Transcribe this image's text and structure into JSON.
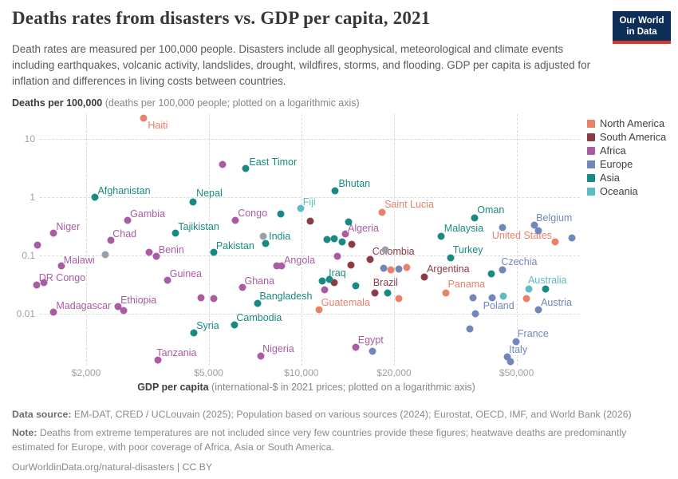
{
  "header": {
    "title": "Deaths rates from disasters vs. GDP per capita, 2021",
    "subtitle": "Death rates are measured per 100,000 people. Disasters include all geophysical, meteorological and climate events including earthquakes, volcanic activity, landslides, drought, wildfires, storms, and flooding. GDP per capita is adjusted for inflation and differences in living costs between countries.",
    "logo_line1": "Our World",
    "logo_line2": "in Data",
    "logo_bg": "#0d2e56",
    "logo_stripe": "#d8352e"
  },
  "axis": {
    "y_bold": "Deaths per 100,000",
    "y_rest": " (deaths per 100,000 people; plotted on a logarithmic axis)",
    "x_bold": "GDP per capita",
    "x_rest": " (international-$ in 2021 prices; plotted on a logarithmic axis)"
  },
  "legend": [
    {
      "label": "North America",
      "color": "#e8806a"
    },
    {
      "label": "South America",
      "color": "#8c3a45"
    },
    {
      "label": "Africa",
      "color": "#a95ca3"
    },
    {
      "label": "Europe",
      "color": "#7286bb"
    },
    {
      "label": "Asia",
      "color": "#188a81"
    },
    {
      "label": "Oceania",
      "color": "#5cbcc4"
    }
  ],
  "footer": {
    "source_bold": "Data source:",
    "source_rest": " EM-DAT, CRED / UCLouvain (2025); Population based on various sources (2024); Eurostat, OECD, IMF, and World Bank (2026)",
    "note_bold": "Note:",
    "note_rest": " Deaths from extreme temperatures are not included since very few countries provide these figures; heatwave deaths are predominantly estimated for Europe, with poor coverage of Africa, Asia or South America.",
    "license": "OurWorldinData.org/natural-disasters | CC BY"
  },
  "chart_data": {
    "type": "scatter",
    "title": "Deaths rates from disasters vs. GDP per capita, 2021",
    "xlabel": "GDP per capita (international-$ in 2021 prices; plotted on a logarithmic axis)",
    "ylabel": "Deaths per 100,000 (deaths per 100,000 people; plotted on a logarithmic axis)",
    "x_scale": "log",
    "y_scale": "log",
    "xlim": [
      1300,
      90000
    ],
    "ylim": [
      0.0012,
      40
    ],
    "grid": true,
    "legend_position": "right",
    "x_ticks": [
      {
        "value": 2000,
        "label": "$2,000"
      },
      {
        "value": 5000,
        "label": "$5,000"
      },
      {
        "value": 10000,
        "label": "$10,000"
      },
      {
        "value": 20000,
        "label": "$20,000"
      },
      {
        "value": 50000,
        "label": "$50,000"
      }
    ],
    "y_ticks": [
      {
        "value": 10,
        "label": "10"
      },
      {
        "value": 1,
        "label": "1"
      },
      {
        "value": 0.1,
        "label": "0.1"
      },
      {
        "value": 0.01,
        "label": "0.01"
      }
    ],
    "series": [
      {
        "name": "North America",
        "color": "#e8806a",
        "points": [
          {
            "label": "Haiti",
            "gdp": 3080,
            "deaths": 23,
            "dx": 5,
            "dy": 9
          },
          {
            "label": "Saint Lucia",
            "gdp": 18300,
            "deaths": 0.55,
            "dx": 3,
            "dy": -10
          },
          {
            "label": "Guatemala",
            "gdp": 11400,
            "deaths": 0.0117,
            "dx": 3,
            "dy": -9
          },
          {
            "label": "Panama",
            "gdp": 29400,
            "deaths": 0.023,
            "dx": 3,
            "dy": -11
          },
          {
            "label": "United States",
            "gdp": 66700,
            "deaths": 0.17,
            "dx": -4,
            "dy": -8,
            "align": "right"
          },
          {
            "gdp": 19500,
            "deaths": 0.057
          },
          {
            "gdp": 22000,
            "deaths": 0.063
          },
          {
            "gdp": 20700,
            "deaths": 0.018
          },
          {
            "gdp": 53900,
            "deaths": 0.018
          }
        ]
      },
      {
        "name": "South America",
        "color": "#8c3a45",
        "points": [
          {
            "label": "Colombia",
            "gdp": 16700,
            "deaths": 0.086,
            "dx": 3,
            "dy": -10
          },
          {
            "label": "Brazil",
            "gdp": 17300,
            "deaths": 0.023,
            "dx": -2,
            "dy": -13
          },
          {
            "label": "Argentina",
            "gdp": 25100,
            "deaths": 0.043,
            "dx": 3,
            "dy": -10
          },
          {
            "gdp": 10700,
            "deaths": 0.39
          },
          {
            "gdp": 14600,
            "deaths": 0.156
          },
          {
            "gdp": 14500,
            "deaths": 0.068
          },
          {
            "gdp": 12800,
            "deaths": 0.034
          }
        ]
      },
      {
        "name": "Africa",
        "color": "#a95ca3",
        "points": [
          {
            "label": "Niger",
            "gdp": 1570,
            "deaths": 0.24,
            "dx": 3,
            "dy": -8
          },
          {
            "label": "Gambia",
            "gdp": 2730,
            "deaths": 0.4,
            "dx": 3,
            "dy": -8
          },
          {
            "label": "Chad",
            "gdp": 2410,
            "deaths": 0.18,
            "dx": 2,
            "dy": -8
          },
          {
            "label": "Malawi",
            "gdp": 1660,
            "deaths": 0.066,
            "dx": 3,
            "dy": -7
          },
          {
            "label": "DR Congo",
            "gdp": 1380,
            "deaths": 0.031,
            "dx": 3,
            "dy": -9
          },
          {
            "label": "Madagascar",
            "gdp": 1570,
            "deaths": 0.0107,
            "dx": 3,
            "dy": -8
          },
          {
            "label": "Ethiopia",
            "gdp": 2540,
            "deaths": 0.0132,
            "dx": 3,
            "dy": -8
          },
          {
            "label": "Benin",
            "gdp": 3200,
            "deaths": 0.113,
            "dx": 12,
            "dy": -3
          },
          {
            "label": "Guinea",
            "gdp": 3670,
            "deaths": 0.0375,
            "dx": 3,
            "dy": -8
          },
          {
            "label": "Tanzania",
            "gdp": 3430,
            "deaths": 0.0016,
            "dx": -2,
            "dy": -9
          },
          {
            "label": "Congo",
            "gdp": 6110,
            "deaths": 0.4,
            "dx": 3,
            "dy": -9
          },
          {
            "label": "Angola",
            "gdp": 8630,
            "deaths": 0.066,
            "dx": 3,
            "dy": -7
          },
          {
            "label": "Ghana",
            "gdp": 6420,
            "deaths": 0.028,
            "dx": 3,
            "dy": -8
          },
          {
            "label": "Nigeria",
            "gdp": 7390,
            "deaths": 0.0019,
            "dx": 2,
            "dy": -9
          },
          {
            "label": "Egypt",
            "gdp": 15000,
            "deaths": 0.0027,
            "dx": 3,
            "dy": -9
          },
          {
            "label": "Algeria",
            "gdp": 13900,
            "deaths": 0.235,
            "dx": 3,
            "dy": -7
          },
          {
            "gdp": 1390,
            "deaths": 0.15
          },
          {
            "gdp": 1460,
            "deaths": 0.034
          },
          {
            "gdp": 2650,
            "deaths": 0.0113
          },
          {
            "gdp": 3380,
            "deaths": 0.097
          },
          {
            "gdp": 4720,
            "deaths": 0.019
          },
          {
            "gdp": 5190,
            "deaths": 0.018
          },
          {
            "gdp": 5550,
            "deaths": 3.6
          },
          {
            "gdp": 8320,
            "deaths": 0.066
          },
          {
            "gdp": 13100,
            "deaths": 0.097
          },
          {
            "gdp": 11900,
            "deaths": 0.026
          }
        ]
      },
      {
        "name": "Europe",
        "color": "#7286bb",
        "points": [
          {
            "label": "Belgium",
            "gdp": 57200,
            "deaths": 0.33,
            "dx": 2,
            "dy": -9
          },
          {
            "label": "Czechia",
            "gdp": 45100,
            "deaths": 0.057,
            "dx": -2,
            "dy": -10
          },
          {
            "label": "Poland",
            "gdp": 36700,
            "deaths": 0.01,
            "dx": 10,
            "dy": -10
          },
          {
            "label": "Austria",
            "gdp": 58900,
            "deaths": 0.0117,
            "dx": 3,
            "dy": -9
          },
          {
            "label": "France",
            "gdp": 49800,
            "deaths": 0.0033,
            "dx": 2,
            "dy": -10
          },
          {
            "label": "Italy",
            "gdp": 46700,
            "deaths": 0.0018,
            "dx": 2,
            "dy": -9
          },
          {
            "gdp": 45100,
            "deaths": 0.3
          },
          {
            "gdp": 58900,
            "deaths": 0.27
          },
          {
            "gdp": 75600,
            "deaths": 0.2
          },
          {
            "gdp": 18500,
            "deaths": 0.06
          },
          {
            "gdp": 20700,
            "deaths": 0.059
          },
          {
            "gdp": 17000,
            "deaths": 0.0023
          },
          {
            "gdp": 35300,
            "deaths": 0.0055
          },
          {
            "gdp": 36200,
            "deaths": 0.019
          },
          {
            "gdp": 41600,
            "deaths": 0.019
          },
          {
            "gdp": 47900,
            "deaths": 0.0015
          }
        ]
      },
      {
        "name": "Asia",
        "color": "#188a81",
        "points": [
          {
            "label": "Afghanistan",
            "gdp": 2130,
            "deaths": 1.0,
            "dx": 4,
            "dy": -8
          },
          {
            "label": "Nepal",
            "gdp": 4450,
            "deaths": 0.83,
            "dx": 4,
            "dy": -11
          },
          {
            "label": "Tajikistan",
            "gdp": 3910,
            "deaths": 0.24,
            "dx": 3,
            "dy": -8
          },
          {
            "label": "Syria",
            "gdp": 4480,
            "deaths": 0.0047,
            "dx": 3,
            "dy": -9
          },
          {
            "label": "East Timor",
            "gdp": 6610,
            "deaths": 3.1,
            "dx": 4,
            "dy": -8
          },
          {
            "label": "Bhutan",
            "gdp": 12900,
            "deaths": 1.3,
            "dx": 4,
            "dy": -9
          },
          {
            "label": "Pakistan",
            "gdp": 5190,
            "deaths": 0.113,
            "dx": 3,
            "dy": -8
          },
          {
            "label": "India",
            "gdp": 7660,
            "deaths": 0.16,
            "dx": 4,
            "dy": -9
          },
          {
            "label": "Bangladesh",
            "gdp": 7230,
            "deaths": 0.0151,
            "dx": 2,
            "dy": -9
          },
          {
            "label": "Iraq",
            "gdp": 11700,
            "deaths": 0.036,
            "dx": 8,
            "dy": -10
          },
          {
            "label": "Cambodia",
            "gdp": 6080,
            "deaths": 0.0064,
            "dx": 2,
            "dy": -9
          },
          {
            "label": "Turkey",
            "gdp": 30500,
            "deaths": 0.091,
            "dx": 3,
            "dy": -10
          },
          {
            "label": "Malaysia",
            "gdp": 28400,
            "deaths": 0.21,
            "dx": 0,
            "dy": -10
          },
          {
            "label": "Oman",
            "gdp": 36600,
            "deaths": 0.44,
            "dx": 3,
            "dy": -10
          },
          {
            "gdp": 8580,
            "deaths": 0.52
          },
          {
            "gdp": 14200,
            "deaths": 0.38
          },
          {
            "gdp": 12100,
            "deaths": 0.19
          },
          {
            "gdp": 12800,
            "deaths": 0.194
          },
          {
            "gdp": 13600,
            "deaths": 0.17
          },
          {
            "gdp": 12300,
            "deaths": 0.039
          },
          {
            "gdp": 15000,
            "deaths": 0.03
          },
          {
            "gdp": 19100,
            "deaths": 0.023
          },
          {
            "gdp": 41300,
            "deaths": 0.048
          },
          {
            "gdp": 62100,
            "deaths": 0.027
          }
        ]
      },
      {
        "name": "Oceania",
        "color": "#5cbcc4",
        "points": [
          {
            "label": "Fiji",
            "gdp": 9940,
            "deaths": 0.64,
            "dx": 3,
            "dy": -8
          },
          {
            "label": "Australia",
            "gdp": 54800,
            "deaths": 0.027,
            "dx": -1,
            "dy": -11
          },
          {
            "gdp": 45400,
            "deaths": 0.02
          }
        ]
      },
      {
        "name": "Other",
        "color": "#9aa0a8",
        "points": [
          {
            "gdp": 2310,
            "deaths": 0.103
          },
          {
            "gdp": 7500,
            "deaths": 0.21
          },
          {
            "gdp": 18700,
            "deaths": 0.125
          }
        ]
      }
    ]
  }
}
